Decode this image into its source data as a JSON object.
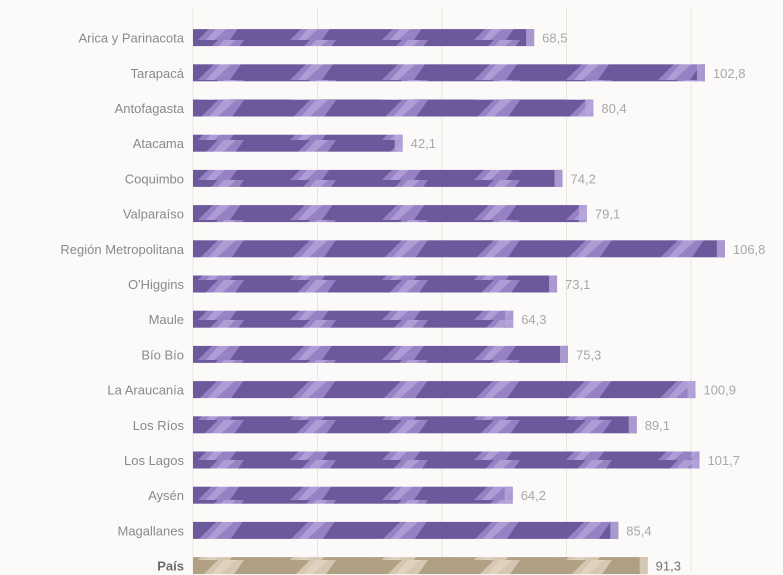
{
  "chart_data": {
    "type": "bar",
    "orientation": "horizontal",
    "title": "",
    "xlabel": "",
    "ylabel": "",
    "categories": [
      "Arica y Parinacota",
      "Tarapacá",
      "Antofagasta",
      "Atacama",
      "Coquimbo",
      "Valparaíso",
      "Región Metropolitana",
      "O'Higgins",
      "Maule",
      "Bío Bío",
      "La Araucanía",
      "Los Ríos",
      "Los Lagos",
      "Aysén",
      "Magallanes",
      "País"
    ],
    "values": [
      68.5,
      102.8,
      80.4,
      42.1,
      74.2,
      79.1,
      106.8,
      73.1,
      64.3,
      75.3,
      100.9,
      89.1,
      101.7,
      64.2,
      85.4,
      91.3
    ],
    "value_labels": [
      "68,5",
      "102,8",
      "80,4",
      "42,1",
      "74,2",
      "79,1",
      "106,8",
      "73,1",
      "64,3",
      "75,3",
      "100,9",
      "89,1",
      "101,7",
      "64,2",
      "85,4",
      "91,3"
    ],
    "highlight_category": "País",
    "xlim": [
      0,
      110
    ],
    "grid": true,
    "legend": "none"
  },
  "colors": {
    "bar": "#7b66ad",
    "bar_light": "#b9a9dc",
    "bar_dark": "#54447f",
    "highlight_bar": "#c1b197",
    "highlight_light": "#ddd1bd",
    "highlight_dark": "#9c8b70",
    "grid": "#e8e6e0",
    "label": "#8a8a8a"
  }
}
